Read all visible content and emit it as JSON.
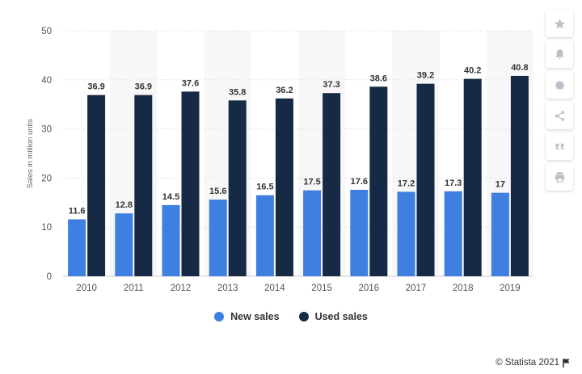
{
  "chart_data": {
    "type": "bar",
    "categories": [
      "2010",
      "2011",
      "2012",
      "2013",
      "2014",
      "2015",
      "2016",
      "2017",
      "2018",
      "2019"
    ],
    "series": [
      {
        "name": "New sales",
        "color": "#3f7fe0",
        "values": [
          11.6,
          12.8,
          14.5,
          15.6,
          16.5,
          17.5,
          17.6,
          17.2,
          17.3,
          17
        ]
      },
      {
        "name": "Used sales",
        "color": "#162a45",
        "values": [
          36.9,
          36.9,
          37.6,
          35.8,
          36.2,
          37.3,
          38.6,
          39.2,
          40.2,
          40.8
        ]
      }
    ],
    "value_labels": {
      "New sales": [
        "11.6",
        "12.8",
        "14.5",
        "15.6",
        "16.5",
        "17.5",
        "17.6",
        "17.2",
        "17.3",
        "17"
      ],
      "Used sales": [
        "36.9",
        "36.9",
        "37.6",
        "35.8",
        "36.2",
        "37.3",
        "38.6",
        "39.2",
        "40.2",
        "40.8"
      ]
    },
    "ylabel": "Sales in million units",
    "xlabel": "",
    "ylim": [
      0,
      50
    ],
    "yticks": [
      "0",
      "10",
      "20",
      "30",
      "40",
      "50"
    ],
    "grid": true,
    "legend_position": "bottom-center"
  },
  "legend": {
    "new_label": "New sales",
    "used_label": "Used sales"
  },
  "sidebar": {
    "icons": [
      "star-icon",
      "bell-icon",
      "gear-icon",
      "share-icon",
      "quote-icon",
      "print-icon"
    ]
  },
  "credit": "© Statista 2021"
}
